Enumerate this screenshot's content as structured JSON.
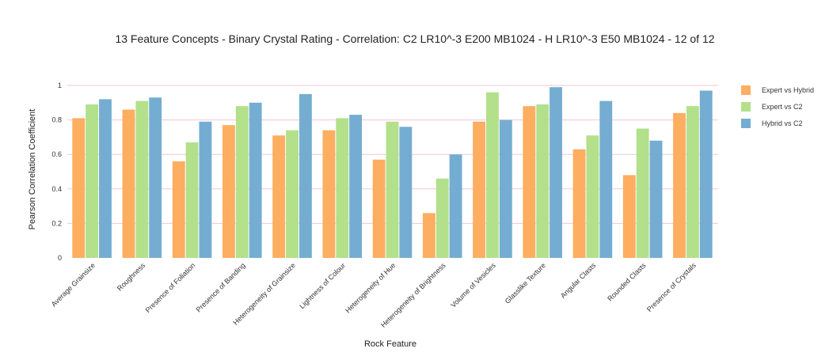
{
  "chart_data": {
    "type": "bar",
    "title": "13 Feature Concepts - Binary Crystal Rating - Correlation: C2 LR10^-3 E200 MB1024 - H LR10^-3 E50 MB1024 - 12 of 12",
    "xlabel": "Rock Feature",
    "ylabel": "Pearson Correlation Coefficient",
    "ylim": [
      0,
      1
    ],
    "yticks": [
      0,
      0.2,
      0.4,
      0.6,
      0.8,
      1
    ],
    "ytick_labels": [
      "0",
      "0.2",
      "0.4",
      "0.6",
      "0.8",
      "1"
    ],
    "grid": true,
    "legend_position": "top-right",
    "categories": [
      "Average Grainsize",
      "Roughness",
      "Presence of Foliation",
      "Presence of Banding",
      "Heterogeneity of Grainsize",
      "Lightness of Colour",
      "Heterogeneity of Hue",
      "Heterogeneity of Brightness",
      "Volume of Vesicles",
      "Glasslike Texture",
      "Angular Clasts",
      "Rounded Clasts",
      "Presence of Crystals"
    ],
    "series": [
      {
        "name": "Expert vs Hybrid",
        "color": "#fdae61",
        "values": [
          0.81,
          0.86,
          0.56,
          0.77,
          0.71,
          0.74,
          0.57,
          0.26,
          0.79,
          0.88,
          0.63,
          0.48,
          0.84
        ]
      },
      {
        "name": "Expert vs C2",
        "color": "#b3e08a",
        "values": [
          0.89,
          0.91,
          0.67,
          0.88,
          0.74,
          0.81,
          0.79,
          0.46,
          0.96,
          0.89,
          0.71,
          0.75,
          0.88
        ]
      },
      {
        "name": "Hybrid vs C2",
        "color": "#74add1",
        "values": [
          0.92,
          0.93,
          0.79,
          0.9,
          0.95,
          0.83,
          0.76,
          0.6,
          0.8,
          0.99,
          0.91,
          0.68,
          0.97
        ]
      }
    ],
    "gridline_color": "#f3c6d6"
  }
}
